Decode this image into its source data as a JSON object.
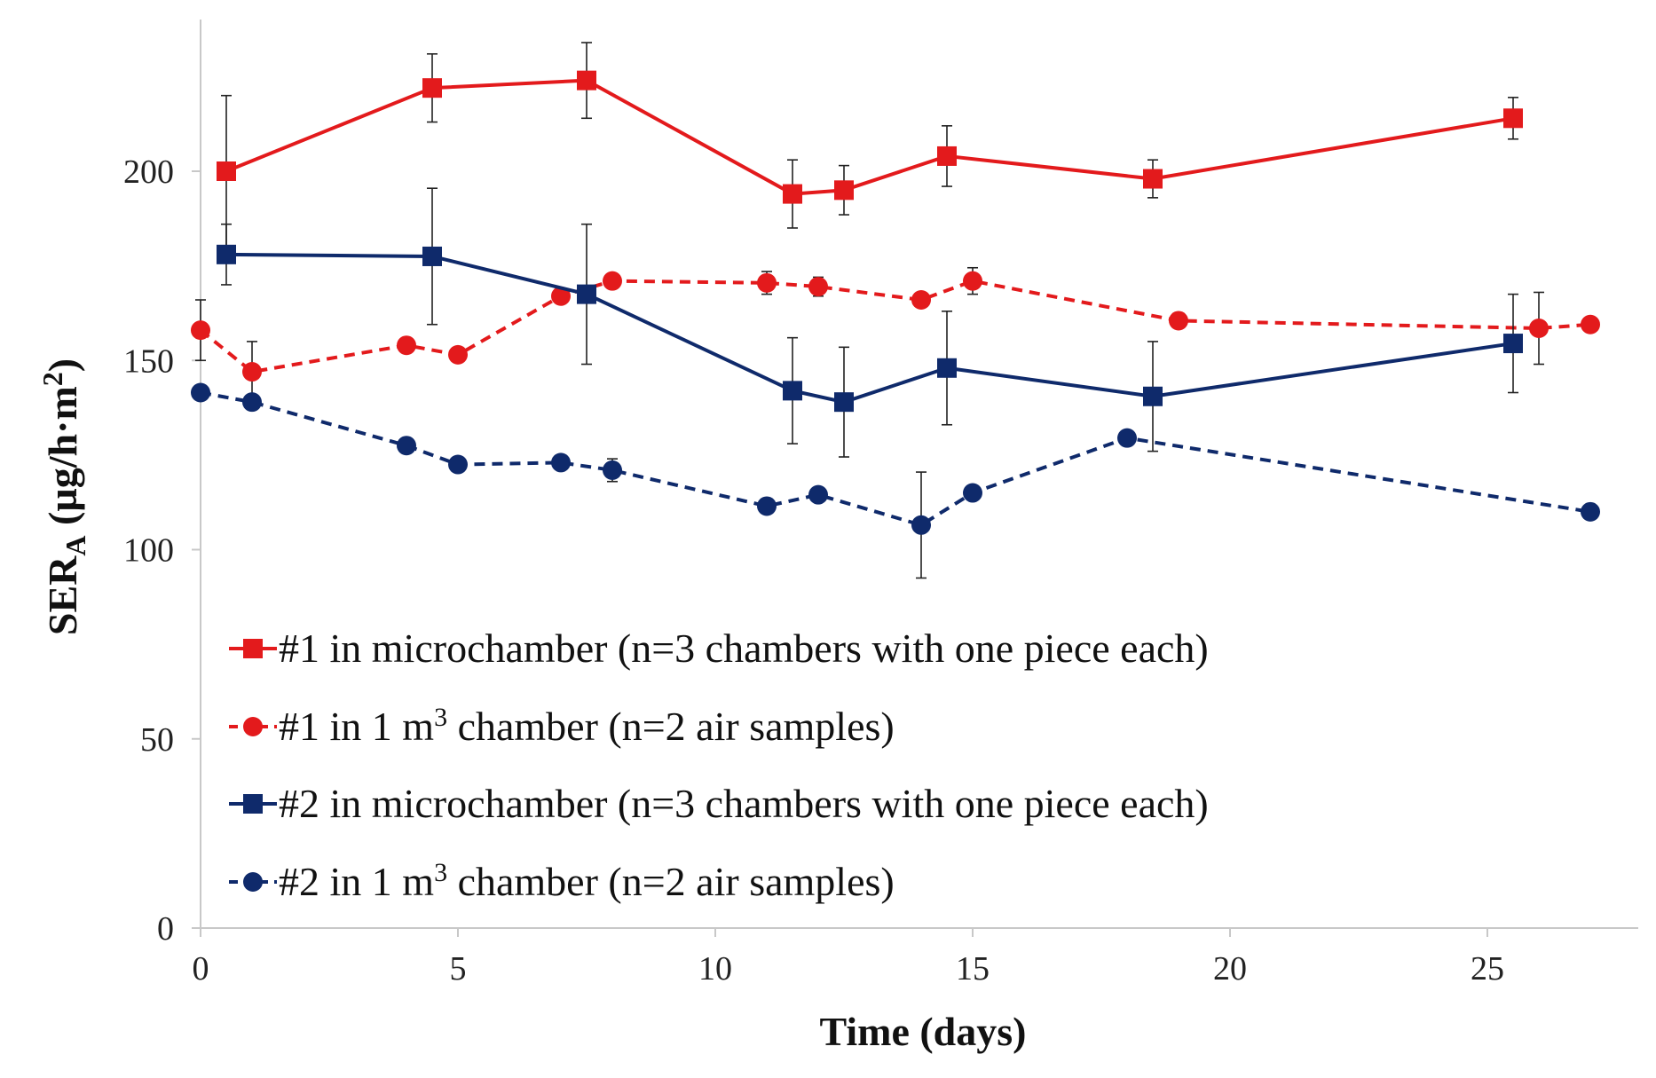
{
  "chart_data": {
    "type": "line",
    "title": "",
    "xlabel": "Time (days)",
    "ylabel": {
      "base": "SER",
      "subscript": "A",
      "unit_prefix": " (µg/h·m",
      "unit_superscript": "2",
      "unit_suffix": ")"
    },
    "xlim": [
      0,
      28
    ],
    "ylim": [
      0,
      240
    ],
    "xticks": [
      0,
      5,
      10,
      15,
      20,
      25
    ],
    "yticks": [
      0,
      50,
      100,
      150,
      200
    ],
    "grid": false,
    "legend_position": "bottom-left",
    "series": [
      {
        "key": "s1",
        "marker": "square",
        "dashed": false,
        "color": "#e31a1c",
        "label": {
          "text": "#1 in microchamber (n=3 chambers with one piece each)"
        },
        "points": [
          {
            "x": 0.5,
            "y": 200,
            "err": 20
          },
          {
            "x": 4.5,
            "y": 222,
            "err": 9
          },
          {
            "x": 7.5,
            "y": 224,
            "err": 10
          },
          {
            "x": 11.5,
            "y": 194,
            "err": 9
          },
          {
            "x": 12.5,
            "y": 195,
            "err": 6.5
          },
          {
            "x": 14.5,
            "y": 204,
            "err": 8
          },
          {
            "x": 18.5,
            "y": 198,
            "err": 5
          },
          {
            "x": 25.5,
            "y": 214,
            "err": 5.5
          }
        ]
      },
      {
        "key": "s2",
        "marker": "circle",
        "dashed": true,
        "color": "#e31a1c",
        "label": {
          "before": "#1 in 1 m",
          "sup": "3",
          "after": " chamber (n=2 air samples)"
        },
        "points": [
          {
            "x": 0,
            "y": 158,
            "err": 8
          },
          {
            "x": 1,
            "y": 147,
            "err": 8
          },
          {
            "x": 4,
            "y": 154
          },
          {
            "x": 5,
            "y": 151.5
          },
          {
            "x": 7,
            "y": 167
          },
          {
            "x": 8,
            "y": 171
          },
          {
            "x": 11,
            "y": 170.5,
            "err": 3
          },
          {
            "x": 12,
            "y": 169.5,
            "err": 2.5
          },
          {
            "x": 14,
            "y": 166
          },
          {
            "x": 15,
            "y": 171,
            "err": 3.5
          },
          {
            "x": 19,
            "y": 160.5
          },
          {
            "x": 26,
            "y": 158.5,
            "err": 9.5
          },
          {
            "x": 27,
            "y": 159.5
          }
        ]
      },
      {
        "key": "s3",
        "marker": "square",
        "dashed": false,
        "color": "#0f2a6b",
        "label": {
          "text": "#2 in microchamber (n=3 chambers with one piece each)"
        },
        "points": [
          {
            "x": 0.5,
            "y": 178,
            "err": 8
          },
          {
            "x": 4.5,
            "y": 177.5,
            "err": 18
          },
          {
            "x": 7.5,
            "y": 167.5,
            "err": 18.5
          },
          {
            "x": 11.5,
            "y": 142,
            "err": 14
          },
          {
            "x": 12.5,
            "y": 139,
            "err": 14.5
          },
          {
            "x": 14.5,
            "y": 148,
            "err": 15
          },
          {
            "x": 18.5,
            "y": 140.5,
            "err": 14.5
          },
          {
            "x": 25.5,
            "y": 154.5,
            "err": 13
          }
        ]
      },
      {
        "key": "s4",
        "marker": "circle",
        "dashed": true,
        "color": "#0f2a6b",
        "label": {
          "before": "#2 in 1 m",
          "sup": "3",
          "after": " chamber (n=2 air samples)"
        },
        "points": [
          {
            "x": 0,
            "y": 141.5
          },
          {
            "x": 1,
            "y": 139
          },
          {
            "x": 4,
            "y": 127.5
          },
          {
            "x": 5,
            "y": 122.5
          },
          {
            "x": 7,
            "y": 123
          },
          {
            "x": 8,
            "y": 121,
            "err": 3
          },
          {
            "x": 11,
            "y": 111.5
          },
          {
            "x": 12,
            "y": 114.5
          },
          {
            "x": 14,
            "y": 106.5,
            "err": 14
          },
          {
            "x": 15,
            "y": 115
          },
          {
            "x": 18,
            "y": 129.5
          },
          {
            "x": 27,
            "y": 110
          }
        ]
      }
    ]
  }
}
